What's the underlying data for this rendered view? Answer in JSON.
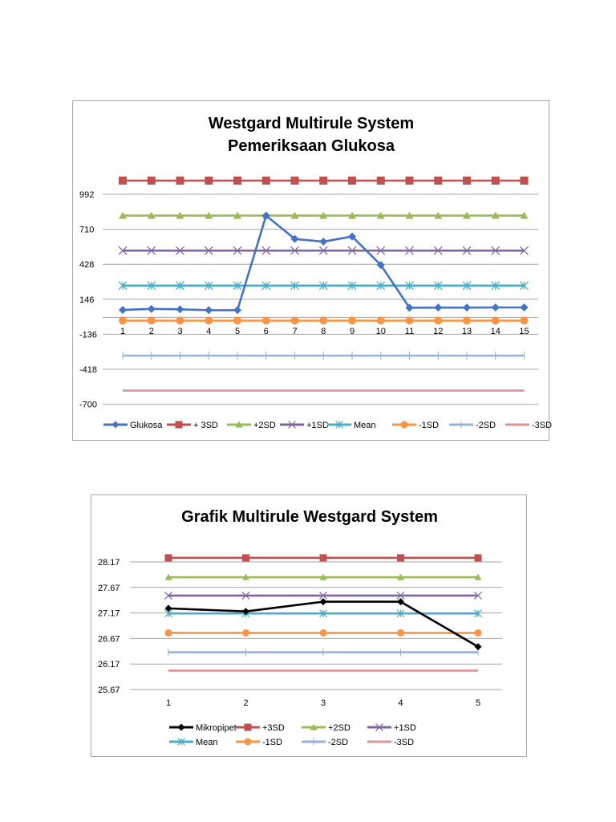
{
  "chart_data": [
    {
      "type": "line",
      "title": "Westgard Multirule System",
      "subtitle": "Pemeriksaan Glukosa",
      "xlabel": "",
      "ylabel": "",
      "x": [
        1,
        2,
        3,
        4,
        5,
        6,
        7,
        8,
        9,
        10,
        11,
        12,
        13,
        14,
        15
      ],
      "yticks": [
        992,
        710,
        428,
        146,
        -136,
        -418,
        -700
      ],
      "ylim": [
        -700,
        1140
      ],
      "grid": true,
      "legend_position": "bottom",
      "series": [
        {
          "name": "Glukosa",
          "color": "#4472c4",
          "marker": "diamond",
          "values": [
            60,
            68,
            65,
            58,
            58,
            820,
            632,
            610,
            652,
            422,
            78,
            79,
            79,
            80,
            80
          ]
        },
        {
          "name": "+ 3SD",
          "color": "#c0504d",
          "marker": "square",
          "values": [
            1102,
            1102,
            1102,
            1102,
            1102,
            1102,
            1102,
            1102,
            1102,
            1102,
            1102,
            1102,
            1102,
            1102,
            1102
          ]
        },
        {
          "name": "+2SD",
          "color": "#9bbb59",
          "marker": "triangle",
          "values": [
            820,
            820,
            820,
            820,
            820,
            820,
            820,
            820,
            820,
            820,
            820,
            820,
            820,
            820,
            820
          ]
        },
        {
          "name": "+1SD",
          "color": "#8064a2",
          "marker": "x",
          "values": [
            538,
            538,
            538,
            538,
            538,
            538,
            538,
            538,
            538,
            538,
            538,
            538,
            538,
            538,
            538
          ]
        },
        {
          "name": "Mean",
          "color": "#4bacc6",
          "marker": "star",
          "values": [
            256,
            256,
            256,
            256,
            256,
            256,
            256,
            256,
            256,
            256,
            256,
            256,
            256,
            256,
            256
          ]
        },
        {
          "name": "-1SD",
          "color": "#f79646",
          "marker": "circle",
          "values": [
            -26,
            -26,
            -26,
            -26,
            -26,
            -26,
            -26,
            -26,
            -26,
            -26,
            -26,
            -26,
            -26,
            -26,
            -26
          ]
        },
        {
          "name": "-2SD",
          "color": "#95b3d7",
          "marker": "plus",
          "values": [
            -308,
            -308,
            -308,
            -308,
            -308,
            -308,
            -308,
            -308,
            -308,
            -308,
            -308,
            -308,
            -308,
            -308,
            -308
          ]
        },
        {
          "name": "-3SD",
          "color": "#d99694",
          "marker": "none",
          "values": [
            -590,
            -590,
            -590,
            -590,
            -590,
            -590,
            -590,
            -590,
            -590,
            -590,
            -590,
            -590,
            -590,
            -590,
            -590
          ]
        }
      ]
    },
    {
      "type": "line",
      "title": "Grafik Multirule Westgard System",
      "xlabel": "",
      "ylabel": "",
      "x": [
        1,
        2,
        3,
        4,
        5
      ],
      "yticks": [
        28.17,
        27.67,
        27.17,
        26.67,
        26.17,
        25.67
      ],
      "ylim": [
        25.67,
        28.17
      ],
      "grid": true,
      "legend_position": "bottom",
      "series": [
        {
          "name": "Mikropipet",
          "color": "#000000",
          "marker": "diamond",
          "values": [
            27.26,
            27.2,
            27.39,
            27.39,
            26.51
          ]
        },
        {
          "name": "+3SD",
          "color": "#c0504d",
          "marker": "square",
          "values": [
            28.25,
            28.25,
            28.25,
            28.25,
            28.25
          ]
        },
        {
          "name": "+2SD",
          "color": "#9bbb59",
          "marker": "triangle",
          "values": [
            27.87,
            27.87,
            27.87,
            27.87,
            27.87
          ]
        },
        {
          "name": "+1SD",
          "color": "#8064a2",
          "marker": "x",
          "values": [
            27.51,
            27.51,
            27.51,
            27.51,
            27.51
          ]
        },
        {
          "name": "Mean",
          "color": "#4bacc6",
          "marker": "star",
          "values": [
            27.16,
            27.16,
            27.16,
            27.16,
            27.16
          ]
        },
        {
          "name": "-1SD",
          "color": "#f79646",
          "marker": "circle",
          "values": [
            26.78,
            26.78,
            26.78,
            26.78,
            26.78
          ]
        },
        {
          "name": "-2SD",
          "color": "#95b3d7",
          "marker": "plus",
          "values": [
            26.4,
            26.4,
            26.4,
            26.4,
            26.4
          ]
        },
        {
          "name": "-3SD",
          "color": "#d99694",
          "marker": "none",
          "values": [
            26.04,
            26.04,
            26.04,
            26.04,
            26.04
          ]
        }
      ]
    }
  ],
  "colors": {
    "gridline": "#a6a6a6",
    "border": "#a6a6a6",
    "background": "#ffffff"
  }
}
